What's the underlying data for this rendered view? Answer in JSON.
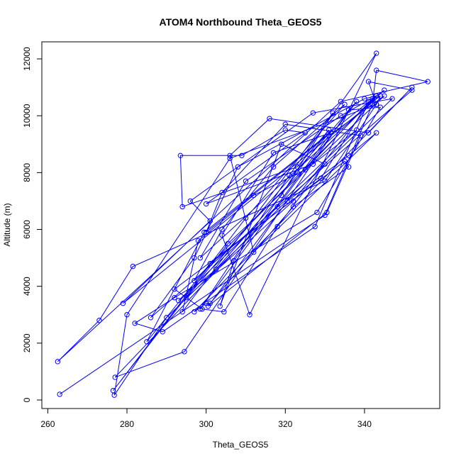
{
  "chart_data": {
    "type": "line",
    "title": "ATOM4 Northbound Theta_GEOS5",
    "xlabel": "Theta_GEOS5",
    "ylabel": "Altitude (m)",
    "xlim": [
      258.5,
      359
    ],
    "ylim": [
      -300,
      12600
    ],
    "xticks": [
      260,
      280,
      300,
      320,
      340
    ],
    "yticks": [
      0,
      2000,
      4000,
      6000,
      8000,
      10000,
      12000
    ],
    "grid": false,
    "legend": "none",
    "series_color": "#0000ff",
    "marker": "open-circle",
    "x": [
      263,
      330,
      342,
      343,
      356,
      334,
      262.5,
      273,
      281.5,
      330,
      343,
      344,
      279,
      301,
      296,
      327,
      347,
      290,
      276.8,
      280,
      306,
      343,
      341,
      352,
      286,
      297,
      308,
      340,
      343,
      299.5,
      285,
      301,
      329,
      341,
      327.5,
      289,
      282,
      292,
      328,
      344,
      336,
      294.5,
      277,
      318,
      338,
      295,
      322,
      343,
      345,
      298.5,
      310,
      334,
      343,
      297,
      304,
      317,
      335,
      310,
      276.5,
      305.5,
      345,
      331,
      298.5,
      321,
      343,
      311,
      304,
      317,
      331.5,
      300,
      304,
      320,
      339,
      330.5,
      300.5,
      320.5,
      336,
      343,
      312,
      306,
      316,
      341,
      352,
      297,
      300,
      301,
      322,
      336,
      335,
      292,
      299,
      304.5,
      318,
      330,
      319,
      303.5,
      307,
      323,
      331,
      323,
      294,
      293.5,
      309,
      320,
      325,
      300,
      327,
      338,
      293,
      302.5,
      319,
      332,
      294,
      298,
      312,
      325,
      342
    ],
    "y": [
      200,
      6500,
      10400,
      11600,
      11200,
      10500,
      1350,
      2800,
      4700,
      7700,
      10400,
      10700,
      3400,
      6300,
      7000,
      10100,
      10600,
      2900,
      170,
      3000,
      8500,
      10400,
      11200,
      10900,
      2900,
      5000,
      8200,
      10600,
      10700,
      5900,
      2050,
      4800,
      7800,
      10500,
      6100,
      2400,
      2700,
      3600,
      6600,
      10300,
      10200,
      1700,
      800,
      6800,
      10500,
      3600,
      7000,
      10700,
      10900,
      5000,
      7700,
      10000,
      10700,
      4200,
      6000,
      8200,
      10400,
      6400,
      330,
      5500,
      10700,
      9300,
      3200,
      7900,
      12200,
      3000,
      5800,
      8700,
      9400,
      5900,
      7300,
      9700,
      9300,
      6600,
      3300,
      7000,
      8600,
      9400,
      5200,
      8600,
      9900,
      9400,
      11000,
      3100,
      3400,
      3400,
      6800,
      8200,
      8400,
      3900,
      3200,
      3100,
      6100,
      8300,
      9000,
      3300,
      4900,
      8000,
      9500,
      8200,
      6800,
      8600,
      8600,
      9500,
      9400,
      6900,
      8300,
      9500,
      3500,
      4600,
      7200,
      10100,
      3100,
      5600,
      7200,
      8100,
      10600
    ]
  }
}
